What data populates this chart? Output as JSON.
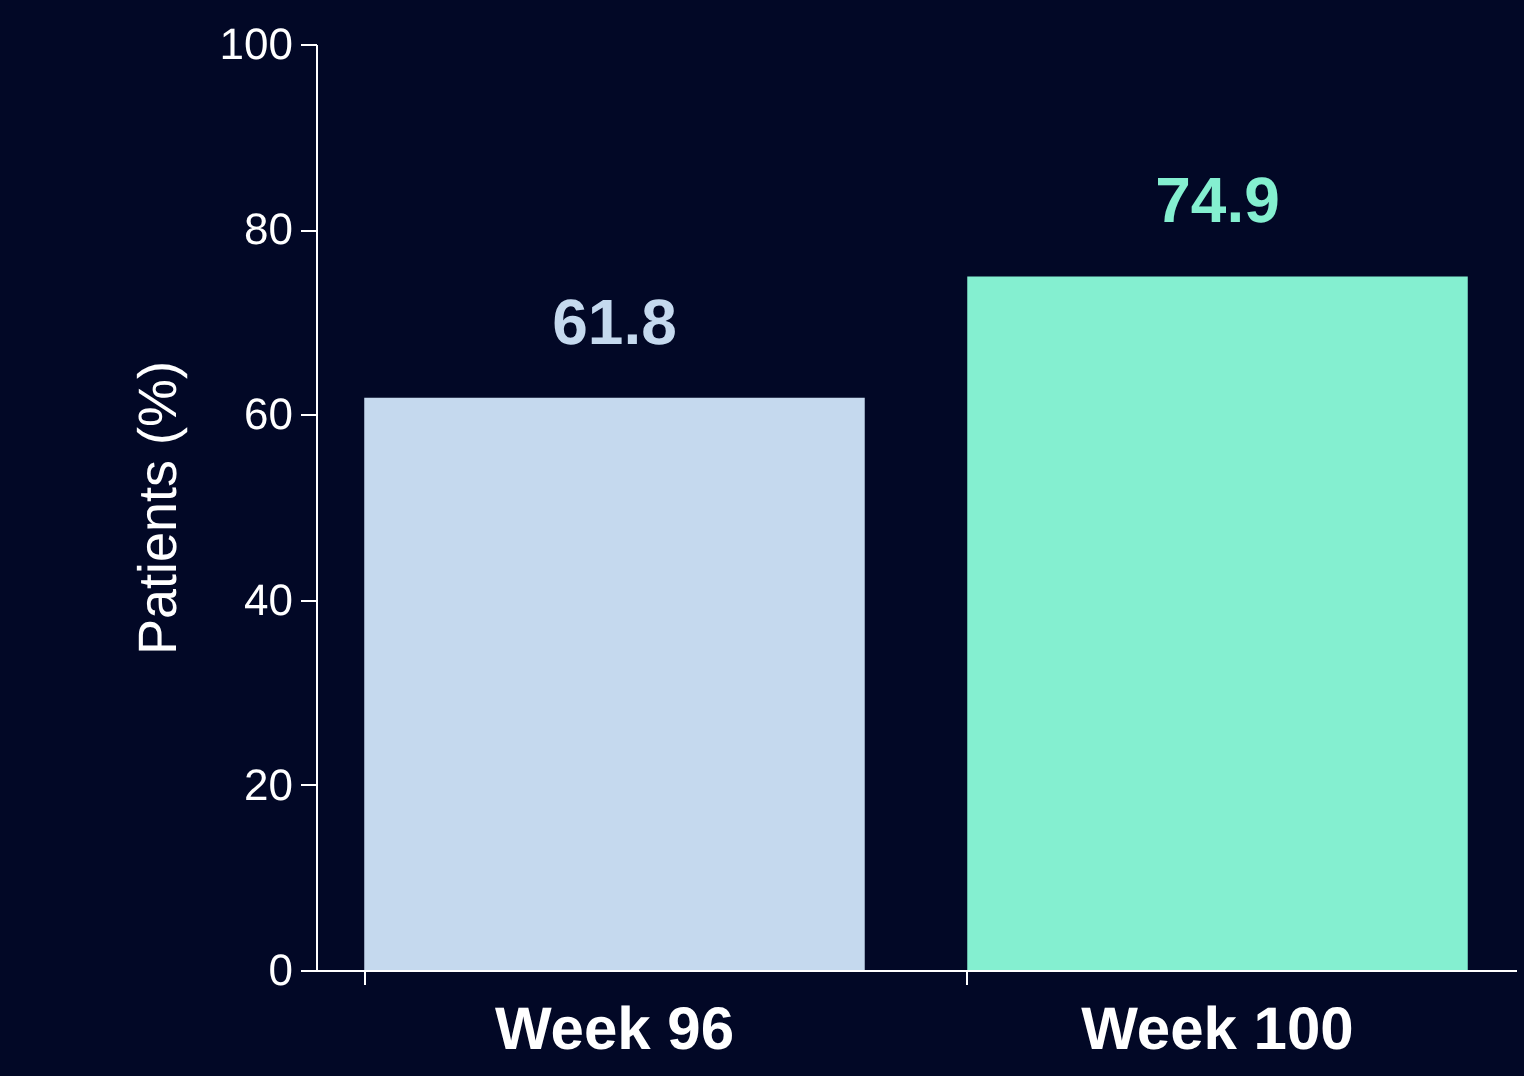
{
  "chart_data": {
    "type": "bar",
    "ylabel": "Patients (%)",
    "categories": [
      "Week 96",
      "Week 100"
    ],
    "values": [
      61.8,
      74.9
    ],
    "colors": [
      "#c5d9ee",
      "#84efd0"
    ],
    "ylim": [
      0,
      100
    ],
    "yticks": [
      0,
      20,
      40,
      60,
      80,
      100
    ],
    "data_labels": true,
    "grid": false
  }
}
